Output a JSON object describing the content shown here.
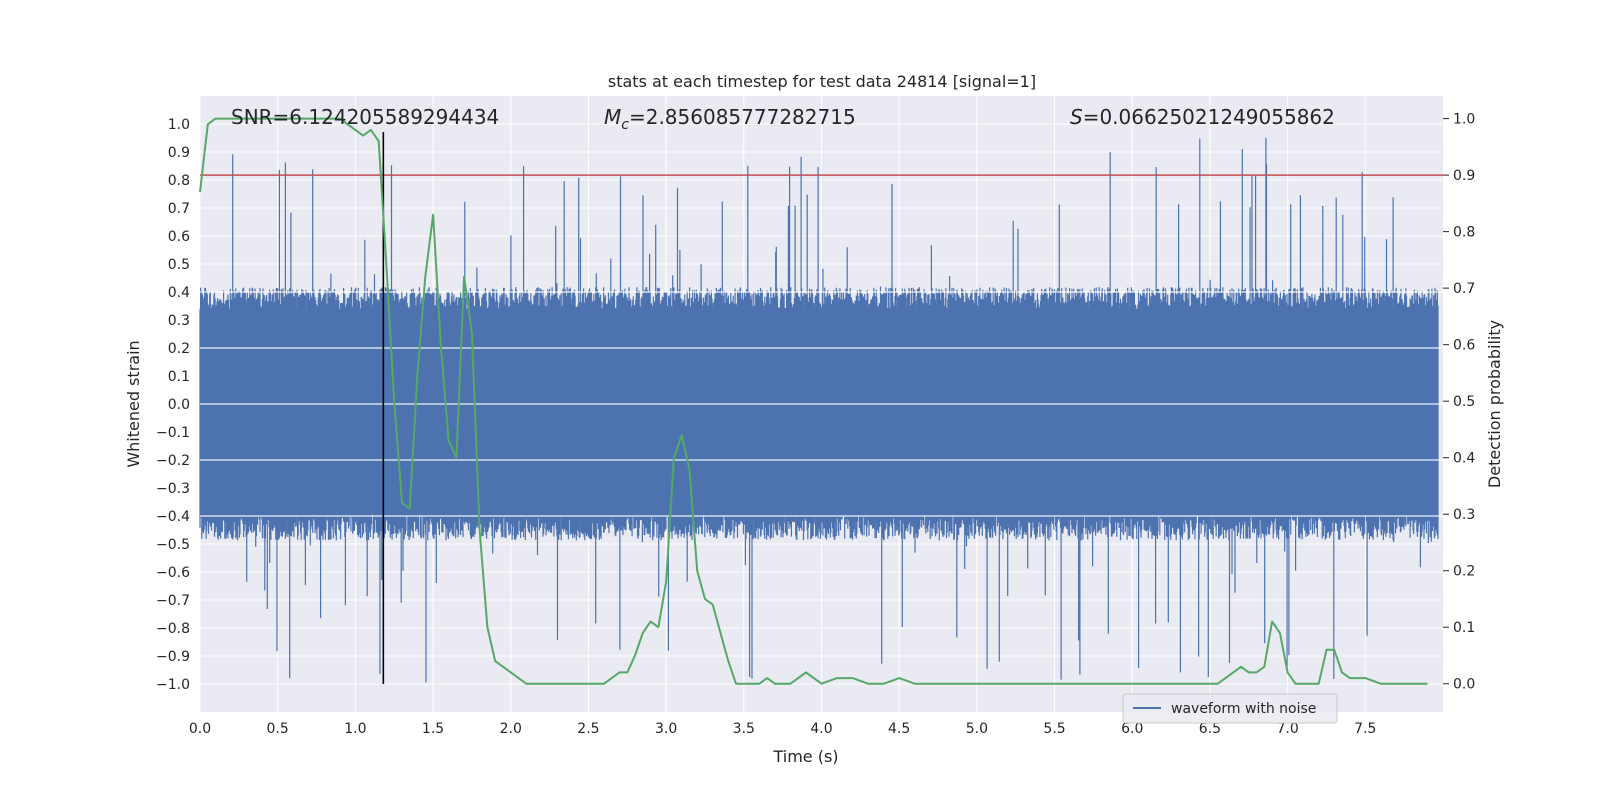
{
  "chart_data": {
    "type": "line",
    "title": "stats at each timestep for test data 24814 [signal=1]",
    "xlabel": "Time (s)",
    "ylabel": "Whitened strain",
    "y2label": "Detection probability",
    "xlim": [
      0.0,
      8.0
    ],
    "ylim": [
      -1.1,
      1.1
    ],
    "y2lim": [
      -0.05,
      1.04
    ],
    "xticks": [
      "0.0",
      "0.5",
      "1.0",
      "1.5",
      "2.0",
      "2.5",
      "3.0",
      "3.5",
      "4.0",
      "4.5",
      "5.0",
      "5.5",
      "6.0",
      "6.5",
      "7.0",
      "7.5"
    ],
    "yticks": [
      "1.0",
      "0.9",
      "0.8",
      "0.7",
      "0.6",
      "0.5",
      "0.4",
      "0.3",
      "0.2",
      "0.1",
      "0.0",
      "-0.1",
      "-0.2",
      "-0.3",
      "-0.4",
      "-0.5",
      "-0.6",
      "-0.7",
      "-0.8",
      "-0.9",
      "-1.0"
    ],
    "y2ticks": [
      "1.0",
      "0.9",
      "0.8",
      "0.7",
      "0.6",
      "0.5",
      "0.4",
      "0.3",
      "0.2",
      "0.1",
      "0.0"
    ],
    "grid": true,
    "legend": {
      "placement": "lower-right",
      "entries": [
        "waveform with noise"
      ]
    },
    "annotations": {
      "snr": "SNR=6.124205589294434",
      "mc_symbol": "M",
      "mc_sub": "c",
      "mc_value": "=2.856085777282715",
      "s_symbol": "S",
      "s_value": "=0.06625021249055862"
    },
    "threshold": 0.9,
    "merger_time": 1.18,
    "series": [
      {
        "name": "waveform with noise",
        "color": "#4c72b0",
        "axis": "left",
        "envelope_pos_median": 0.36,
        "envelope_neg_median": -0.42,
        "envelope_min": -1.0,
        "envelope_max": 0.96,
        "sample_interval_s": 0.0039
      },
      {
        "name": "",
        "color": "#55a868",
        "axis": "right",
        "x": [
          0.0,
          0.05,
          0.1,
          0.2,
          0.3,
          0.4,
          0.5,
          0.6,
          0.7,
          0.8,
          0.9,
          0.95,
          1.0,
          1.05,
          1.1,
          1.15,
          1.2,
          1.25,
          1.3,
          1.35,
          1.4,
          1.45,
          1.5,
          1.55,
          1.6,
          1.65,
          1.7,
          1.75,
          1.8,
          1.85,
          1.9,
          2.0,
          2.1,
          2.2,
          2.3,
          2.4,
          2.5,
          2.55,
          2.6,
          2.65,
          2.7,
          2.75,
          2.8,
          2.85,
          2.9,
          2.95,
          3.0,
          3.05,
          3.1,
          3.15,
          3.2,
          3.25,
          3.3,
          3.35,
          3.4,
          3.45,
          3.5,
          3.6,
          3.65,
          3.7,
          3.8,
          3.9,
          4.0,
          4.1,
          4.2,
          4.3,
          4.4,
          4.5,
          4.6,
          4.7,
          4.8,
          4.9,
          5.0,
          5.2,
          5.4,
          5.6,
          5.8,
          6.0,
          6.2,
          6.4,
          6.5,
          6.55,
          6.6,
          6.65,
          6.7,
          6.75,
          6.8,
          6.85,
          6.9,
          6.95,
          7.0,
          7.05,
          7.1,
          7.15,
          7.2,
          7.25,
          7.3,
          7.35,
          7.4,
          7.5,
          7.6,
          7.7,
          7.8,
          7.9
        ],
        "y": [
          0.87,
          0.99,
          1.0,
          1.0,
          1.0,
          1.0,
          1.0,
          1.0,
          1.0,
          1.0,
          1.0,
          0.99,
          0.98,
          0.97,
          0.98,
          0.96,
          0.74,
          0.5,
          0.32,
          0.31,
          0.55,
          0.72,
          0.83,
          0.6,
          0.43,
          0.4,
          0.72,
          0.62,
          0.27,
          0.1,
          0.04,
          0.02,
          0.0,
          0.0,
          0.0,
          0.0,
          0.0,
          0.0,
          0.0,
          0.01,
          0.02,
          0.02,
          0.05,
          0.09,
          0.11,
          0.1,
          0.18,
          0.4,
          0.44,
          0.38,
          0.2,
          0.15,
          0.14,
          0.09,
          0.04,
          0.0,
          0.0,
          0.0,
          0.01,
          0.0,
          0.0,
          0.02,
          0.0,
          0.01,
          0.01,
          0.0,
          0.0,
          0.01,
          0.0,
          0.0,
          0.0,
          0.0,
          0.0,
          0.0,
          0.0,
          0.0,
          0.0,
          0.0,
          0.0,
          0.0,
          0.0,
          0.0,
          0.01,
          0.02,
          0.03,
          0.02,
          0.02,
          0.03,
          0.11,
          0.09,
          0.02,
          0.0,
          0.0,
          0.0,
          0.0,
          0.06,
          0.06,
          0.02,
          0.01,
          0.01,
          0.0,
          0.0,
          0.0,
          0.0
        ]
      }
    ]
  }
}
